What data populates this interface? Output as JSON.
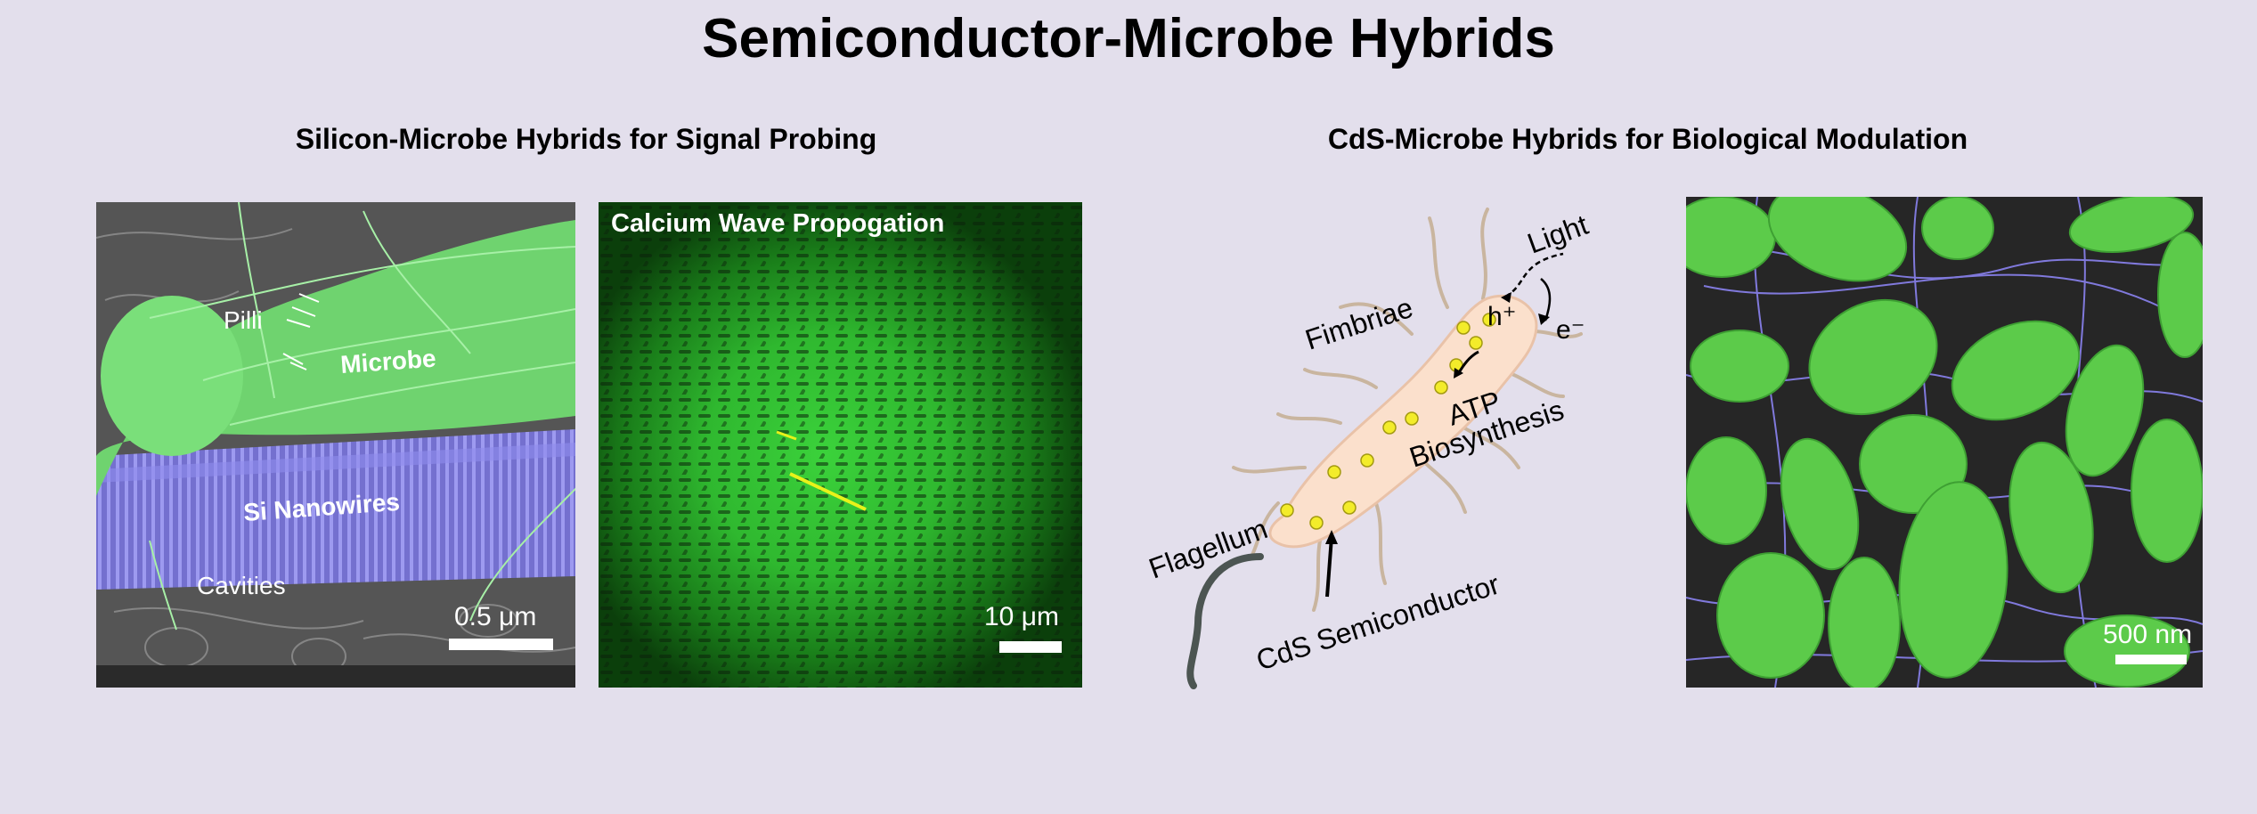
{
  "title": "Semiconductor-Microbe Hybrids",
  "left_section": {
    "title": "Silicon-Microbe Hybrids for Signal Probing",
    "sem_panel": {
      "label_pilli": "Pilli",
      "label_microbe": "Microbe",
      "label_nanowires": "Si Nanowires",
      "label_cavities": "Cavities",
      "scale": "0.5 μm"
    },
    "calcium_panel": {
      "title": "Calcium Wave Propogation",
      "scale": "10 μm"
    }
  },
  "right_section": {
    "title": "CdS-Microbe Hybrids for Biological Modulation",
    "diagram": {
      "light": "Light",
      "hole": "h⁺",
      "electron": "e⁻",
      "fimbriae": "Fimbriae",
      "atp": "ATP",
      "biosynthesis": "Biosynthesis",
      "flagellum": "Flagellum",
      "cds": "CdS Semiconductor"
    },
    "sem_panel": {
      "scale": "500 nm"
    }
  },
  "colors": {
    "background": "#e3dfec",
    "microbe_green": "#5fd35f",
    "nanowire_purple": "#7b78d8",
    "cell_body": "#fbe0cc",
    "nanoparticle": "#f3ec2a"
  }
}
